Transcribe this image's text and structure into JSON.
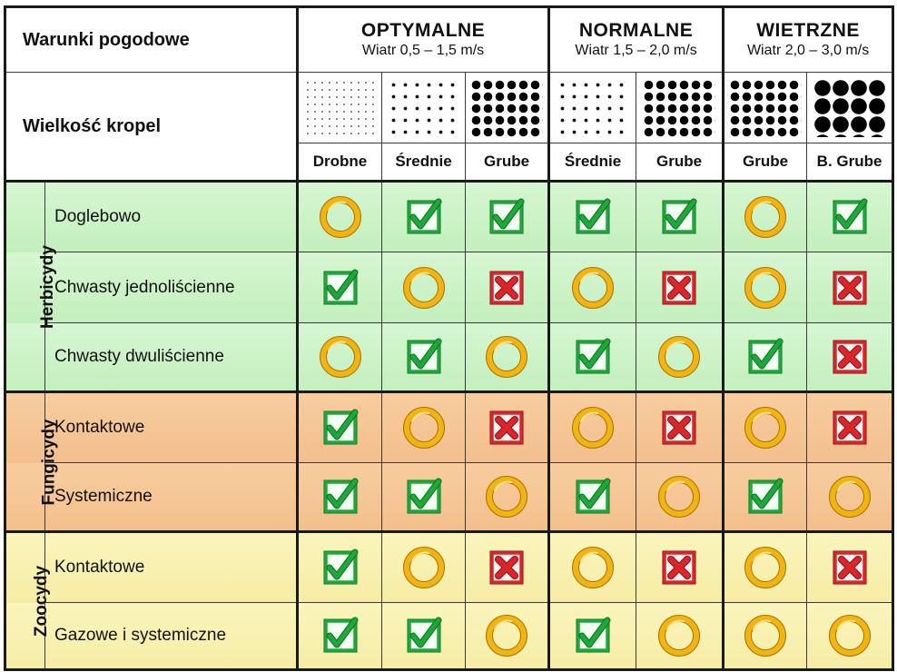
{
  "header": {
    "weather_label": "Warunki pogodowe",
    "droplet_label": "Wielkość kropel",
    "groups": [
      {
        "title": "OPTYMALNE",
        "wind": "Wiatr 0,5 – 1,5 m/s"
      },
      {
        "title": "NORMALNE",
        "wind": "Wiatr 1,5 – 2,0 m/s"
      },
      {
        "title": "WIETRZNE",
        "wind": "Wiatr 2,0 – 3,0 m/s"
      }
    ],
    "sizes": [
      "Drobne",
      "Średnie",
      "Grube",
      "Średnie",
      "Grube",
      "Grube",
      "B. Grube"
    ]
  },
  "categories": [
    {
      "name": "Herbicydy",
      "color": "#c8f0c2"
    },
    {
      "name": "Fungicydy",
      "color": "#f5c490"
    },
    {
      "name": "Zoocydy",
      "color": "#f8f0ae"
    }
  ],
  "rows": [
    {
      "label": "Doglebowo",
      "cells": [
        "circle",
        "check",
        "check",
        "check",
        "check",
        "circle",
        "check"
      ]
    },
    {
      "label": "Chwasty jednoliścienne",
      "cells": [
        "check",
        "circle",
        "cross",
        "circle",
        "cross",
        "circle",
        "cross"
      ]
    },
    {
      "label": "Chwasty dwuliścienne",
      "cells": [
        "circle",
        "check",
        "circle",
        "check",
        "circle",
        "check",
        "cross"
      ]
    },
    {
      "label": "Kontaktowe",
      "cells": [
        "check",
        "circle",
        "cross",
        "circle",
        "cross",
        "circle",
        "cross"
      ]
    },
    {
      "label": "Systemiczne",
      "cells": [
        "check",
        "check",
        "circle",
        "check",
        "circle",
        "check",
        "circle"
      ]
    },
    {
      "label": "Kontaktowe",
      "cells": [
        "check",
        "circle",
        "cross",
        "circle",
        "cross",
        "circle",
        "cross"
      ]
    },
    {
      "label": "Gazowe i systemiczne",
      "cells": [
        "check",
        "check",
        "circle",
        "check",
        "circle",
        "circle",
        "circle"
      ]
    }
  ],
  "icon_names": {
    "check": "green-check-icon",
    "circle": "yellow-circle-icon",
    "cross": "red-cross-icon"
  },
  "colors": {
    "check_green": "#1fa83a",
    "circle_yellow": "#f2b412",
    "cross_red": "#d9262b"
  }
}
